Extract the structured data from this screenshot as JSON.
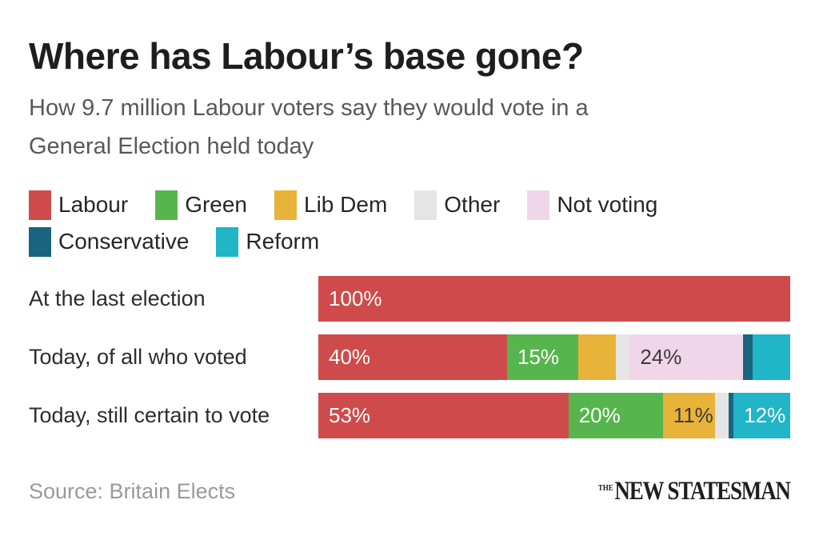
{
  "title": "Where has Labour’s base gone?",
  "subtitle": {
    "line1": "How 9.7 million Labour voters say they would vote in a",
    "line2": "General Election held today"
  },
  "source": "Source: Britain Elects",
  "branding": {
    "the": "THE",
    "name": "NEW STATESMAN"
  },
  "colors": {
    "background": "#ffffff",
    "title_text": "#1e1e1e",
    "subtitle_text": "#585858",
    "row_label_text": "#2d2d2d",
    "source_text": "#9a9a9a",
    "light_segment_label_text": "#3b3b3b",
    "dark_segment_label_text": "#ffffff"
  },
  "chart_data": {
    "type": "bar",
    "subtype": "horizontal-stacked",
    "title": "Where has Labour’s base gone?",
    "subtitle": "How 9.7 million Labour voters say they would vote in a General Election held today",
    "unit": "%",
    "xlim": [
      0,
      100
    ],
    "grid": false,
    "legend_position": "top",
    "legend_rows": [
      [
        "Labour",
        "Green",
        "Lib Dem",
        "Other",
        "Not voting"
      ],
      [
        "Conservative",
        "Reform"
      ]
    ],
    "categories": [
      "At the last election",
      "Today, of all who voted",
      "Today, still certain to vote"
    ],
    "series": [
      {
        "name": "Labour",
        "color": "#cf4b4b",
        "label_text_color": "#ffffff",
        "values": [
          100,
          40,
          53
        ]
      },
      {
        "name": "Green",
        "color": "#57b54d",
        "label_text_color": "#ffffff",
        "values": [
          0,
          15,
          20
        ]
      },
      {
        "name": "Lib Dem",
        "color": "#e8b339",
        "label_text_color": "#3b3b3b",
        "values": [
          0,
          8,
          11
        ]
      },
      {
        "name": "Other",
        "color": "#e5e5e5",
        "label_text_color": "#3b3b3b",
        "values": [
          0,
          3,
          3
        ]
      },
      {
        "name": "Not voting",
        "color": "#f0d6e9",
        "label_text_color": "#3b3b3b",
        "values": [
          0,
          24,
          0
        ]
      },
      {
        "name": "Conservative",
        "color": "#1a6480",
        "label_text_color": "#ffffff",
        "values": [
          0,
          2,
          1
        ]
      },
      {
        "name": "Reform",
        "color": "#20b5c7",
        "label_text_color": "#ffffff",
        "values": [
          0,
          8,
          12
        ]
      }
    ],
    "visible_bar_labels": {
      "At the last election": {
        "Labour": "100%"
      },
      "Today, of all who voted": {
        "Labour": "40%",
        "Green": "15%",
        "Not voting": "24%"
      },
      "Today, still certain to vote": {
        "Labour": "53%",
        "Green": "20%",
        "Lib Dem": "11%",
        "Reform": "12%"
      }
    },
    "label_rule": "segment percentage shown only when value >= 10"
  }
}
